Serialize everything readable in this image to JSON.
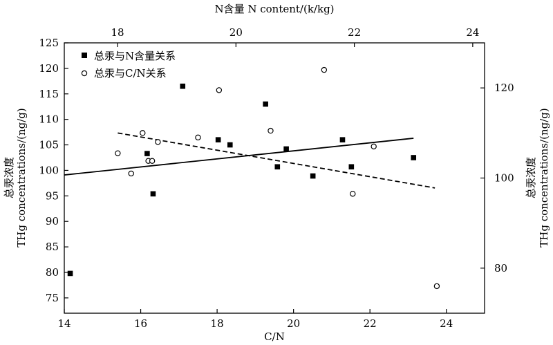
{
  "chart_data": {
    "type": "scatter",
    "x_bottom": {
      "label": "C/N",
      "ticks": [
        14,
        16,
        18,
        20,
        22,
        24
      ],
      "range": [
        14,
        25
      ]
    },
    "x_top": {
      "label": "N含量 N content/(k/kg)",
      "ticks": [
        18,
        20,
        22,
        24
      ],
      "range": [
        17.1,
        24.2
      ]
    },
    "y_left": {
      "label_cn": "总汞浓度",
      "label_en": "THg concentrations/(ng/g)",
      "ticks": [
        75,
        80,
        85,
        90,
        95,
        100,
        105,
        110,
        115,
        120,
        125
      ],
      "range": [
        72,
        125
      ]
    },
    "y_right": {
      "label_cn": "总汞浓度",
      "label_en": "THg concentrations/(ng/g)",
      "ticks": [
        80,
        100,
        120
      ],
      "range": [
        70,
        130
      ]
    },
    "legend": {
      "position": "top-left"
    },
    "series": [
      {
        "name": "总汞与N含量关系",
        "marker": "filled-square",
        "x_axis": "top",
        "y_axis": "left",
        "points": [
          [
            17.2,
            79.8
          ],
          [
            18.5,
            103.3
          ],
          [
            18.6,
            95.4
          ],
          [
            19.1,
            116.5
          ],
          [
            19.7,
            106.0
          ],
          [
            19.9,
            105.0
          ],
          [
            20.5,
            113.0
          ],
          [
            20.7,
            100.7
          ],
          [
            20.85,
            104.2
          ],
          [
            21.3,
            98.9
          ],
          [
            21.8,
            106.0
          ],
          [
            21.95,
            100.7
          ],
          [
            23.0,
            102.5
          ]
        ],
        "trend": {
          "x": [
            17.1,
            23.0
          ],
          "y": [
            99.1,
            106.3
          ],
          "style": "solid"
        }
      },
      {
        "name": "总汞与C/N关系",
        "marker": "open-circle",
        "x_axis": "bottom",
        "y_axis": "right",
        "points": [
          [
            15.4,
            105.5
          ],
          [
            15.75,
            101.0
          ],
          [
            16.05,
            110.0
          ],
          [
            16.2,
            103.8
          ],
          [
            16.3,
            103.8
          ],
          [
            16.45,
            108.0
          ],
          [
            17.5,
            109.0
          ],
          [
            18.05,
            119.5
          ],
          [
            19.4,
            110.5
          ],
          [
            20.8,
            124.0
          ],
          [
            21.55,
            96.5
          ],
          [
            22.1,
            107.0
          ],
          [
            23.75,
            76.0
          ]
        ],
        "trend": {
          "x": [
            15.4,
            23.7
          ],
          "y": [
            110.0,
            97.8
          ],
          "style": "dashed"
        }
      }
    ]
  }
}
